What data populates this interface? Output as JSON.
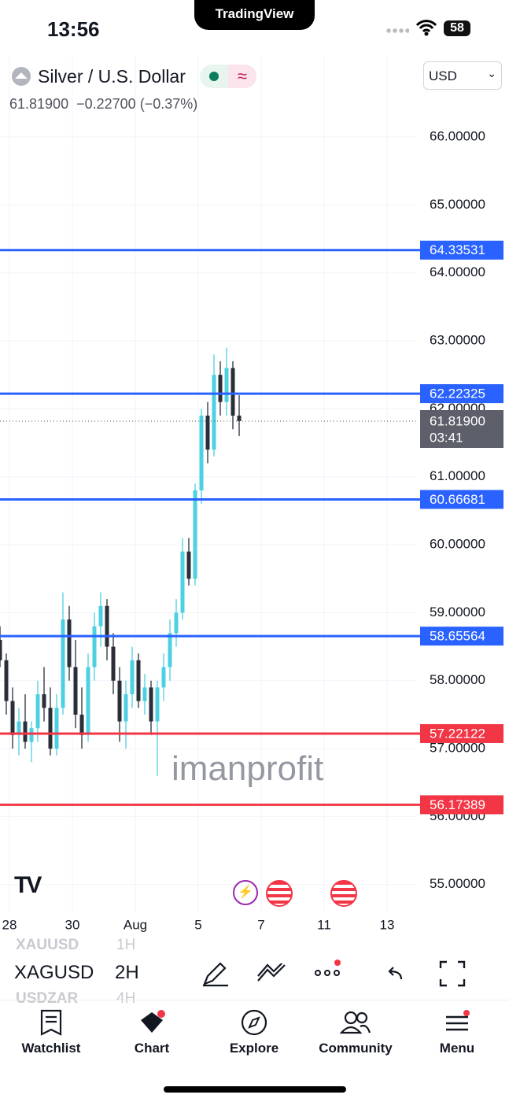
{
  "status_bar": {
    "time": "13:56",
    "app": "TradingView",
    "battery": "58"
  },
  "header": {
    "symbol_name": "Silver / U.S. Dollar",
    "currency": "USD",
    "price": "61.81900",
    "change": "−0.22700",
    "change_pct": "(−0.37%)"
  },
  "watermark": "imanprofit",
  "chart_data": {
    "type": "candlestick",
    "x": [
      -0.3,
      -0.1,
      0.1,
      0.3,
      0.5,
      0.7,
      0.9,
      1.1,
      1.3,
      1.5,
      1.7,
      1.9,
      2.1,
      2.3,
      2.5,
      2.7,
      2.9,
      3.1,
      3.3,
      3.5,
      3.7,
      3.9,
      4.1,
      4.3,
      4.5,
      4.7,
      4.9,
      5.1,
      5.3,
      5.5,
      5.7,
      5.9,
      6.1,
      6.3,
      6.5,
      6.7,
      6.9,
      7.1,
      7.3
    ],
    "open": [
      58.6,
      58.3,
      57.7,
      57.2,
      57.4,
      57.1,
      57.3,
      57.8,
      57.6,
      57.0,
      57.6,
      58.9,
      58.2,
      57.5,
      57.2,
      58.2,
      58.8,
      59.1,
      58.5,
      58.0,
      57.4,
      57.8,
      58.3,
      57.7,
      57.9,
      57.4,
      57.9,
      58.2,
      58.7,
      59.0,
      59.9,
      59.5,
      60.8,
      61.9,
      61.4,
      62.5,
      62.1,
      62.6,
      61.9
    ],
    "high": [
      58.8,
      58.4,
      57.9,
      57.6,
      57.8,
      57.4,
      58.0,
      58.2,
      57.9,
      57.8,
      59.3,
      59.1,
      58.6,
      57.9,
      58.4,
      59.0,
      59.3,
      59.2,
      58.7,
      58.2,
      58.0,
      58.5,
      58.4,
      58.1,
      58.0,
      58.0,
      58.4,
      58.9,
      59.2,
      60.1,
      60.1,
      60.9,
      62.0,
      62.1,
      62.8,
      62.7,
      62.9,
      62.7,
      62.2
    ],
    "low": [
      58.2,
      57.5,
      57.0,
      56.9,
      57.0,
      56.8,
      57.1,
      57.4,
      56.9,
      56.9,
      57.5,
      58.0,
      57.3,
      57.0,
      57.1,
      58.0,
      58.5,
      58.3,
      57.8,
      57.1,
      57.0,
      57.6,
      57.6,
      57.5,
      57.2,
      56.6,
      57.7,
      58.0,
      58.5,
      58.9,
      59.4,
      59.4,
      60.6,
      61.2,
      61.3,
      61.9,
      61.9,
      61.7,
      61.6
    ],
    "close": [
      58.3,
      57.7,
      57.2,
      57.4,
      57.1,
      57.3,
      57.8,
      57.6,
      57.0,
      57.6,
      58.9,
      58.2,
      57.5,
      57.2,
      58.2,
      58.8,
      59.1,
      58.5,
      58.0,
      57.4,
      57.8,
      58.3,
      57.7,
      57.9,
      57.4,
      57.9,
      58.2,
      58.7,
      59.0,
      59.9,
      59.5,
      60.8,
      61.9,
      61.4,
      62.5,
      62.1,
      62.6,
      61.9,
      61.819
    ],
    "up_color": "#4dd0e1",
    "down_color": "#2a2e39",
    "xlim": [
      -0.3,
      12.95
    ],
    "xticks": [
      {
        "value": 0,
        "label": "28"
      },
      {
        "value": 2,
        "label": "30"
      },
      {
        "value": 4,
        "label": "Aug"
      },
      {
        "value": 6,
        "label": "5"
      },
      {
        "value": 8,
        "label": "7"
      },
      {
        "value": 10,
        "label": "11"
      },
      {
        "value": 12,
        "label": "13"
      }
    ],
    "ylim": [
      54.58,
      66.51
    ],
    "yticks": [
      {
        "value": 55,
        "label": "55.00000"
      },
      {
        "value": 56,
        "label": "56.00000"
      },
      {
        "value": 57,
        "label": "57.00000"
      },
      {
        "value": 58,
        "label": "58.00000"
      },
      {
        "value": 59,
        "label": "59.00000"
      },
      {
        "value": 60,
        "label": "60.00000"
      },
      {
        "value": 61,
        "label": "61.00000"
      },
      {
        "value": 62,
        "label": "62.00000"
      },
      {
        "value": 63,
        "label": "63.00000"
      },
      {
        "value": 64,
        "label": "64.00000"
      },
      {
        "value": 65,
        "label": "65.00000"
      },
      {
        "value": 66,
        "label": "66.00000"
      }
    ],
    "grid": true,
    "levels": [
      {
        "value": 64.33531,
        "color": "#2962ff"
      },
      {
        "value": 62.22325,
        "color": "#2962ff"
      },
      {
        "value": 60.66681,
        "color": "#2962ff"
      },
      {
        "value": 58.65564,
        "color": "#2962ff"
      },
      {
        "value": 57.22122,
        "color": "#f23645"
      },
      {
        "value": 56.17389,
        "color": "#f23645"
      }
    ],
    "last_price": {
      "value": 61.819,
      "label": "61.81900"
    },
    "countdown": "03:41",
    "last_color": "#5d606b"
  },
  "toolbar": {
    "symbols": [
      "XAUUSD",
      "XAGUSD",
      "USDZAR"
    ],
    "intervals": [
      "1H",
      "2H",
      "4H"
    ]
  },
  "nav": [
    "Watchlist",
    "Chart",
    "Explore",
    "Community",
    "Menu"
  ]
}
